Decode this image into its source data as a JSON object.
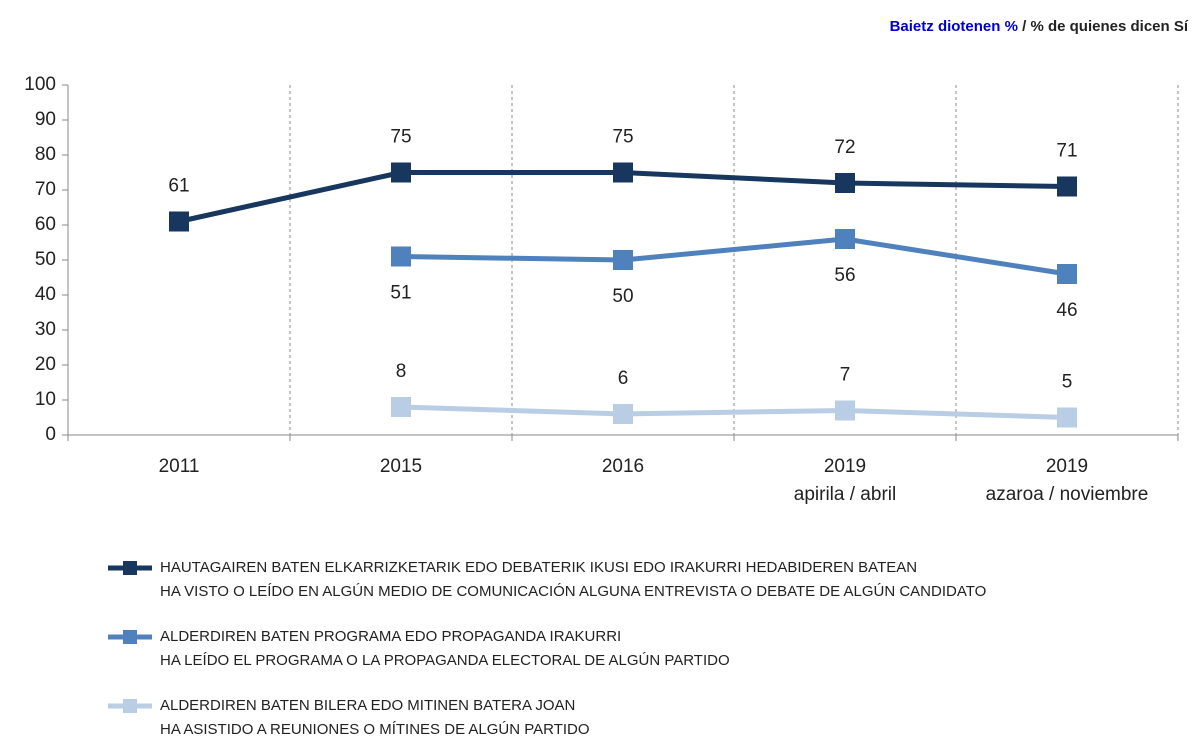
{
  "chart_data": {
    "type": "line",
    "header_highlight": "Baietz diotenen %",
    "header_rest": " / % de quienes dicen Sí",
    "categories": [
      "2011",
      "2015",
      "2016",
      "2019",
      "2019"
    ],
    "category_sublabels": [
      null,
      null,
      null,
      "apirila / abril",
      "azaroa / noviembre"
    ],
    "ylim": [
      0,
      100
    ],
    "yticks": [
      0,
      10,
      20,
      30,
      40,
      50,
      60,
      70,
      80,
      90,
      100
    ],
    "series": [
      {
        "name": "HAUTAGAIREN BATEN ELKARRIZKETARIK EDO DEBATERIK IKUSI EDO IRAKURRI HEDABIDEREN BATEAN",
        "subname": "HA VISTO O LEÍDO EN ALGÚN MEDIO DE COMUNICACIÓN ALGUNA ENTREVISTA O DEBATE DE ALGÚN CANDIDATO",
        "color": "#17375e",
        "label_position": "above",
        "values": [
          61,
          75,
          75,
          72,
          71
        ]
      },
      {
        "name": "ALDERDIREN BATEN PROGRAMA EDO PROPAGANDA IRAKURRI",
        "subname": "HA LEÍDO EL PROGRAMA O LA PROPAGANDA ELECTORAL DE ALGÚN PARTIDO",
        "color": "#4f81bd",
        "label_position": "below",
        "values": [
          null,
          51,
          50,
          56,
          46
        ]
      },
      {
        "name": "ALDERDIREN BATEN BILERA EDO MITINEN BATERA JOAN",
        "subname": "HA ASISTIDO A REUNIONES O MÍTINES DE ALGÚN PARTIDO",
        "color": "#b9cde5",
        "label_position": "above",
        "values": [
          null,
          8,
          6,
          7,
          5
        ]
      }
    ]
  }
}
